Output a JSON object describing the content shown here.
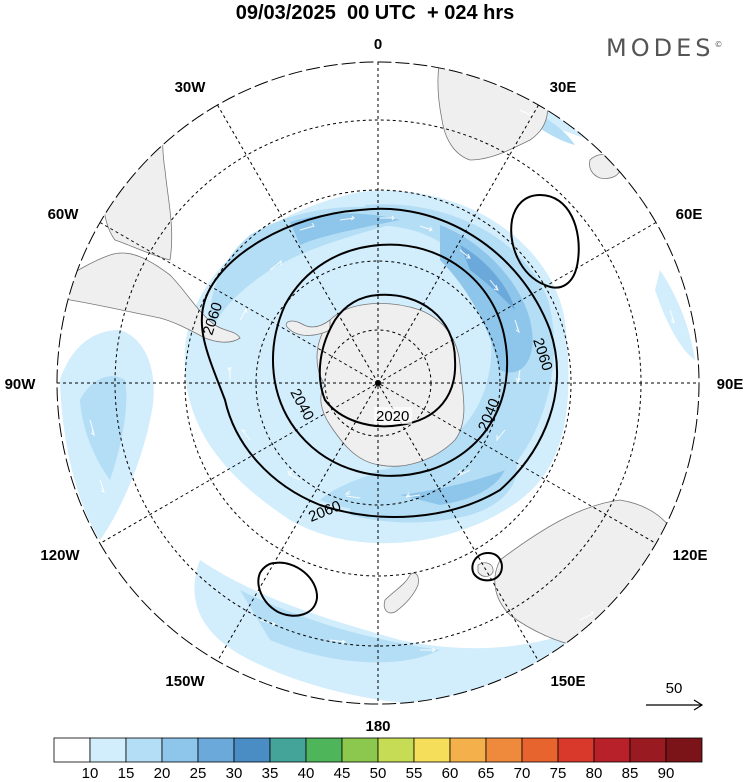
{
  "title": "09/03/2025  00 UTC  + 024 hrs",
  "brand": "MODES",
  "brand_mark": "©",
  "longitude_labels": {
    "lon_0": "0",
    "lon_30e": "30E",
    "lon_60e": "60E",
    "lon_90e": "90E",
    "lon_120e": "120E",
    "lon_150e": "150E",
    "lon_180": "180",
    "lon_150w": "150W",
    "lon_120w": "120W",
    "lon_90w": "90W",
    "lon_60w": "60W",
    "lon_30w": "30W"
  },
  "contour_labels": {
    "c2020": "2020",
    "c2040a": "2040",
    "c2040b": "2040",
    "c2060a": "2060",
    "c2060b": "2060",
    "c2060c": "2060"
  },
  "vector_reference": {
    "value": "50"
  },
  "colorbar": {
    "ticks": [
      "10",
      "15",
      "20",
      "25",
      "30",
      "35",
      "40",
      "45",
      "50",
      "55",
      "60",
      "65",
      "70",
      "75",
      "80",
      "85",
      "90"
    ],
    "colors": [
      "#ffffff",
      "#d2edfb",
      "#b4def5",
      "#8ec5ea",
      "#6aa9da",
      "#4a8dc5",
      "#45a49a",
      "#4eb55a",
      "#8cc84e",
      "#c6dc54",
      "#f5de5a",
      "#f4b04a",
      "#ef8a3c",
      "#e8642f",
      "#d8392a",
      "#b8202a",
      "#9a1a22",
      "#7a1418"
    ]
  },
  "colors": {
    "land": "#efefef",
    "coast": "#777777",
    "grid": "#000000",
    "vector": "#ffffff"
  },
  "icons": [
    "vector-reference-arrow-icon"
  ]
}
